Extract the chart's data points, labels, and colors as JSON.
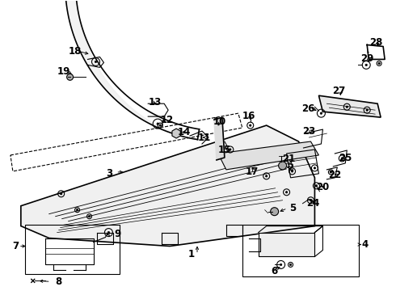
{
  "background_color": "#ffffff",
  "line_color": "#000000",
  "gray_color": "#888888",
  "light_gray": "#d0d0d0",
  "fig_width": 4.9,
  "fig_height": 3.6,
  "dpi": 100
}
